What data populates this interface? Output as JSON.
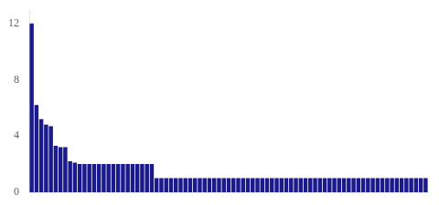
{
  "chart_data": {
    "type": "bar",
    "values": [
      12.0,
      6.2,
      5.2,
      4.8,
      4.7,
      3.3,
      3.2,
      3.2,
      2.2,
      2.1,
      2.0,
      2.0,
      2.0,
      2.0,
      2.0,
      2.0,
      2.0,
      2.0,
      2.0,
      2.0,
      2.0,
      2.0,
      2.0,
      2.0,
      2.0,
      2.0,
      1.0,
      1.0,
      1.0,
      1.0,
      1.0,
      1.0,
      1.0,
      1.0,
      1.0,
      1.0,
      1.0,
      1.0,
      1.0,
      1.0,
      1.0,
      1.0,
      1.0,
      1.0,
      1.0,
      1.0,
      1.0,
      1.0,
      1.0,
      1.0,
      1.0,
      1.0,
      1.0,
      1.0,
      1.0,
      1.0,
      1.0,
      1.0,
      1.0,
      1.0,
      1.0,
      1.0,
      1.0,
      1.0,
      1.0,
      1.0,
      1.0,
      1.0,
      1.0,
      1.0,
      1.0,
      1.0,
      1.0,
      1.0,
      1.0,
      1.0,
      1.0,
      1.0,
      1.0,
      1.0,
      1.0,
      1.0,
      1.0
    ],
    "color": "#1a1a8c",
    "ylim": [
      0,
      13
    ],
    "yticks": [
      0,
      4,
      8,
      12
    ],
    "grid": false,
    "tick_labels": "y"
  }
}
